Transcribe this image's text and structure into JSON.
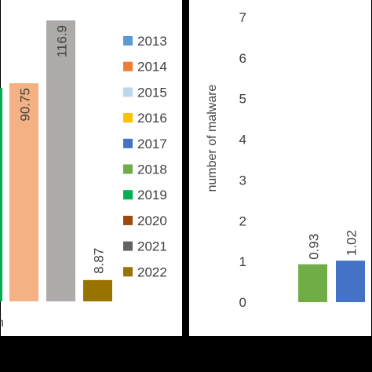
{
  "chart_data": [
    {
      "type": "bar",
      "series": [
        {
          "name": "2019",
          "value": null,
          "color": "#00b050"
        },
        {
          "name": "2014",
          "value": 90.75,
          "color": "#f4b183"
        },
        {
          "name": "2021",
          "value": 116.9,
          "color": "#aeaaaa"
        },
        {
          "name": "2022",
          "value": 8.87,
          "color": "#997300"
        }
      ],
      "legend": {
        "position": "right",
        "entries": [
          {
            "label": "2013",
            "color": "#5b9bd5"
          },
          {
            "label": "2014",
            "color": "#ed7d31"
          },
          {
            "label": "2015",
            "color": "#bdd7ee"
          },
          {
            "label": "2016",
            "color": "#ffc000"
          },
          {
            "label": "2017",
            "color": "#4472c4"
          },
          {
            "label": "2018",
            "color": "#70ad47"
          },
          {
            "label": "2019",
            "color": "#00b050"
          },
          {
            "label": "2020",
            "color": "#9e480e"
          },
          {
            "label": "2021",
            "color": "#636363"
          },
          {
            "label": "2022",
            "color": "#997300"
          }
        ]
      },
      "xlabel_fragment": "n"
    },
    {
      "type": "bar",
      "ylabel": "number of malware",
      "ylim": [
        0,
        7
      ],
      "yticks": [
        "0",
        "1",
        "2",
        "3",
        "4",
        "5",
        "6",
        "7"
      ],
      "series": [
        {
          "name": "2018",
          "value": 0.93,
          "color": "#70ad47"
        },
        {
          "name": "2017",
          "value": 1.02,
          "color": "#4472c4"
        }
      ]
    }
  ]
}
